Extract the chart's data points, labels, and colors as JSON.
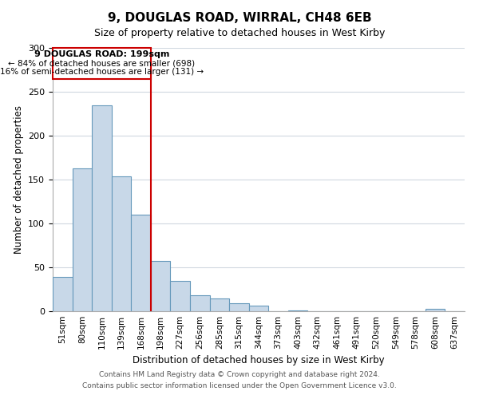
{
  "title": "9, DOUGLAS ROAD, WIRRAL, CH48 6EB",
  "subtitle": "Size of property relative to detached houses in West Kirby",
  "xlabel": "Distribution of detached houses by size in West Kirby",
  "ylabel": "Number of detached properties",
  "bar_labels": [
    "51sqm",
    "80sqm",
    "110sqm",
    "139sqm",
    "168sqm",
    "198sqm",
    "227sqm",
    "256sqm",
    "285sqm",
    "315sqm",
    "344sqm",
    "373sqm",
    "403sqm",
    "432sqm",
    "461sqm",
    "491sqm",
    "520sqm",
    "549sqm",
    "578sqm",
    "608sqm",
    "637sqm"
  ],
  "bar_values": [
    39,
    163,
    235,
    154,
    110,
    57,
    35,
    18,
    15,
    9,
    6,
    0,
    1,
    0,
    0,
    0,
    0,
    0,
    0,
    3,
    0
  ],
  "bar_color": "#c8d8e8",
  "bar_edge_color": "#6699bb",
  "reference_line_index": 5,
  "annotation_title": "9 DOUGLAS ROAD: 199sqm",
  "annotation_smaller": "← 84% of detached houses are smaller (698)",
  "annotation_larger": "16% of semi-detached houses are larger (131) →",
  "ylim": [
    0,
    300
  ],
  "yticks": [
    0,
    50,
    100,
    150,
    200,
    250,
    300
  ],
  "ref_line_color": "#cc0000",
  "box_edge_color": "#cc0000",
  "footer_line1": "Contains HM Land Registry data © Crown copyright and database right 2024.",
  "footer_line2": "Contains public sector information licensed under the Open Government Licence v3.0.",
  "background_color": "#ffffff",
  "grid_color": "#d0d8e0"
}
